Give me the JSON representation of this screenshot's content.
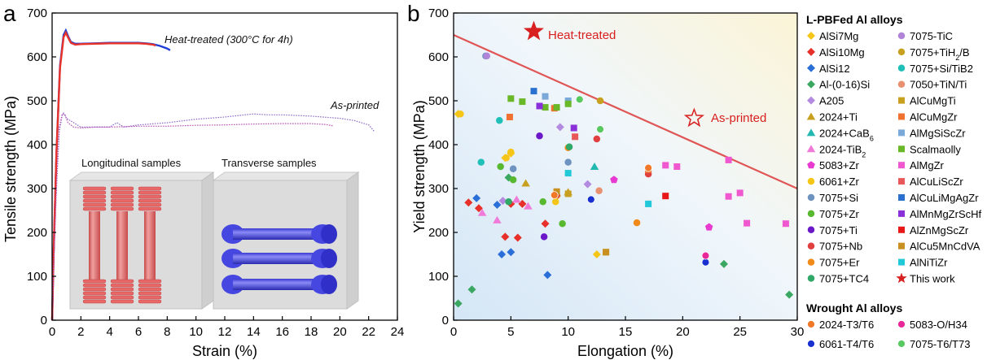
{
  "panels": {
    "a": "a",
    "b": "b"
  },
  "chart_data": [
    {
      "type": "line",
      "xlabel": "Strain (%)",
      "ylabel": "Tensile strength (MPa)",
      "xlim": [
        0,
        24
      ],
      "ylim": [
        0,
        700
      ],
      "xticks": [
        0,
        2,
        4,
        6,
        8,
        10,
        12,
        14,
        16,
        18,
        20,
        22,
        24
      ],
      "yticks": [
        0,
        100,
        200,
        300,
        400,
        500,
        600,
        700
      ],
      "grid": false,
      "annotations": {
        "heat_treated": "Heat-treated (300°C for 4h)",
        "as_printed": "As-printed",
        "longitudinal": "Longitudinal samples",
        "transverse": "Transverse samples"
      },
      "series": [
        {
          "color": "#1f3fd6",
          "x": [
            0,
            0.1,
            0.3,
            0.55,
            0.8,
            0.95,
            1.1,
            1.3,
            1.6,
            2,
            3,
            4,
            5,
            6,
            6.5,
            7,
            7.5,
            8,
            8.2
          ],
          "y": [
            0,
            150,
            380,
            580,
            650,
            660,
            648,
            634,
            630,
            630,
            631,
            632,
            632,
            632,
            631,
            629,
            625,
            619,
            615
          ]
        },
        {
          "color": "#e8322a",
          "x": [
            0,
            0.1,
            0.3,
            0.55,
            0.8,
            0.95,
            1.1,
            1.3,
            1.6,
            2,
            3,
            4,
            5,
            6,
            6.5,
            7,
            7.2
          ],
          "y": [
            0,
            150,
            380,
            575,
            645,
            655,
            645,
            632,
            628,
            629,
            630,
            631,
            631,
            631,
            630,
            628,
            626
          ]
        },
        {
          "color": "#8a63c8",
          "x": [
            0,
            0.1,
            0.3,
            0.5,
            0.7,
            0.8,
            1,
            2,
            4,
            4.5,
            5,
            6,
            8,
            10,
            12,
            14,
            15,
            16,
            18,
            20,
            21,
            22,
            22.4
          ],
          "y": [
            0,
            120,
            300,
            430,
            468,
            472,
            460,
            440,
            440,
            450,
            440,
            445,
            450,
            458,
            463,
            470,
            468,
            468,
            465,
            460,
            455,
            445,
            430
          ]
        },
        {
          "color": "#b64cb0",
          "x": [
            0,
            0.1,
            0.3,
            0.5,
            0.7,
            0.9,
            1.1,
            1.5,
            2,
            3,
            4,
            5,
            6,
            8,
            10,
            12,
            14,
            16,
            18,
            19,
            19.5
          ],
          "y": [
            0,
            120,
            300,
            440,
            470,
            468,
            450,
            440,
            438,
            440,
            440,
            441,
            442,
            442,
            444,
            445,
            447,
            448,
            448,
            446,
            443
          ]
        }
      ]
    },
    {
      "type": "scatter",
      "xlabel": "Elongation (%)",
      "ylabel": "Yield strength (MPa)",
      "xlim": [
        0,
        30
      ],
      "ylim": [
        0,
        700
      ],
      "xticks": [
        0,
        5,
        10,
        15,
        20,
        25,
        30
      ],
      "yticks": [
        0,
        100,
        200,
        300,
        400,
        500,
        600,
        700
      ],
      "grid": false,
      "legend_position": "right",
      "legend_heading_lpbf": "L-PBFed Al alloys",
      "legend_heading_wrought": "Wrought Al alloys",
      "boundary_line": {
        "x": [
          0,
          30
        ],
        "y": [
          650,
          300
        ],
        "color": "#e05555"
      },
      "this_work": [
        {
          "label": "Heat-treated",
          "x": 7,
          "y": 658,
          "filled": true
        },
        {
          "label": "As-printed",
          "x": 21,
          "y": 460,
          "filled": false
        }
      ],
      "series": [
        {
          "name": "AlSi7Mg",
          "name_main": "AlSi7Mg",
          "marker": "diamond",
          "color": "#f5c518",
          "points": [
            [
              0.4,
              470
            ],
            [
              4.5,
              370
            ],
            [
              5,
              380
            ],
            [
              12.5,
              150
            ],
            [
              9,
              282
            ]
          ]
        },
        {
          "name": "AlSi10Mg",
          "name_main": "AlSi10Mg",
          "marker": "diamond",
          "color": "#e8302a",
          "points": [
            [
              1.3,
              268
            ],
            [
              2.2,
              255
            ],
            [
              4.5,
              190
            ],
            [
              5.6,
              188
            ],
            [
              6,
              265
            ],
            [
              8,
              220
            ],
            [
              5,
              265
            ]
          ]
        },
        {
          "name": "AlSi12",
          "name_main": "AlSi12",
          "marker": "diamond",
          "color": "#2a6fd8",
          "points": [
            [
              2,
              278
            ],
            [
              3.8,
              263
            ],
            [
              4.2,
              150
            ],
            [
              5,
              155
            ],
            [
              8.2,
              103
            ]
          ]
        },
        {
          "name": "Al-(0-16)Si",
          "name_main": "Al-(0-16)Si",
          "marker": "diamond",
          "color": "#3aa860",
          "points": [
            [
              0.4,
              38
            ],
            [
              1.6,
              70
            ],
            [
              4.8,
              325
            ],
            [
              23.6,
              128
            ],
            [
              29.3,
              58
            ]
          ]
        },
        {
          "name": "A205",
          "name_main": "A205",
          "marker": "diamond",
          "color": "#b48ae0",
          "points": [
            [
              9.3,
              440
            ],
            [
              11.7,
              310
            ],
            [
              4.3,
              272
            ]
          ]
        },
        {
          "name": "2024+Ti",
          "name_main": "2024+Ti",
          "marker": "triangle",
          "color": "#c8a020",
          "points": [
            [
              6.3,
              312
            ],
            [
              10,
              292
            ],
            [
              9,
              290
            ]
          ]
        },
        {
          "name": "2024+CaB6",
          "name_main": "2024+CaB",
          "name_sub": "6",
          "marker": "triangle",
          "color": "#20b8b0",
          "points": [
            [
              12.3,
              350
            ]
          ]
        },
        {
          "name": "2024-TiB2",
          "name_main": "2024-TiB",
          "name_sub": "2",
          "marker": "triangle",
          "color": "#f07ad8",
          "points": [
            [
              2.5,
              245
            ],
            [
              3.8,
              228
            ],
            [
              5.5,
              275
            ],
            [
              6.5,
              260
            ]
          ]
        },
        {
          "name": "5083+Zr",
          "name_main": "5083+Zr",
          "marker": "pentagon",
          "color": "#e83ad0",
          "points": [
            [
              14,
              320
            ],
            [
              22.3,
              212
            ]
          ]
        },
        {
          "name": "6061+Zr",
          "name_main": "6061+Zr",
          "marker": "circle",
          "color": "#f5c518",
          "points": [
            [
              0.6,
              470
            ],
            [
              4.6,
              370
            ],
            [
              5,
              383
            ],
            [
              8.9,
              270
            ]
          ]
        },
        {
          "name": "7075+Si",
          "name_main": "7075+Si",
          "marker": "circle",
          "color": "#6f93c0",
          "points": [
            [
              5.2,
              345
            ],
            [
              10,
              360
            ],
            [
              2.8,
              602
            ]
          ]
        },
        {
          "name": "7075+Zr",
          "name_main": "7075+Zr",
          "marker": "circle",
          "color": "#58b830",
          "points": [
            [
              4.1,
              350
            ],
            [
              5.2,
              320
            ],
            [
              7.8,
              270
            ],
            [
              9.5,
              220
            ]
          ]
        },
        {
          "name": "7075+Ti",
          "name_main": "7075+Ti",
          "marker": "circle",
          "color": "#6a18c8",
          "points": [
            [
              7.5,
              420
            ],
            [
              7.9,
              190
            ]
          ]
        },
        {
          "name": "7075+Nb",
          "name_main": "7075+Nb",
          "marker": "circle",
          "color": "#e04040",
          "points": [
            [
              12.5,
              413
            ],
            [
              9,
              285
            ],
            [
              17,
              333
            ]
          ]
        },
        {
          "name": "7075+Er",
          "name_main": "7075+Er",
          "marker": "circle",
          "color": "#f08a18",
          "points": [
            [
              10,
              393
            ],
            [
              17,
              345
            ],
            [
              16,
              222
            ]
          ]
        },
        {
          "name": "7075+TC4",
          "name_main": "7075+TC4",
          "marker": "circle",
          "color": "#30a868",
          "points": [
            [
              10.1,
              395
            ],
            [
              4.8,
              270
            ]
          ]
        },
        {
          "name": "7075-TiC",
          "name_main": "7075-TiC",
          "marker": "circle",
          "color": "#b084d8",
          "points": [
            [
              2.9,
              602
            ]
          ]
        },
        {
          "name": "7075+TiH2/B",
          "name_main": "7075+TiH",
          "name_sub": "2",
          "name_tail": "/B",
          "marker": "circle",
          "color": "#c8a020",
          "points": [
            [
              12.8,
              500
            ]
          ]
        },
        {
          "name": "7075+Si/TiB2",
          "name_main": "7075+Si/TiB2",
          "marker": "circle",
          "color": "#20c0b8",
          "points": [
            [
              2.4,
              360
            ],
            [
              4,
              455
            ]
          ]
        },
        {
          "name": "7050+TiN/Ti",
          "name_main": "7050+TiN/Ti",
          "marker": "circle",
          "color": "#e89070",
          "points": [
            [
              12.7,
              295
            ]
          ]
        },
        {
          "name": "AlCuMgTi",
          "name_main": "AlCuMgTi",
          "marker": "square",
          "color": "#c8a020",
          "points": [
            [
              13.3,
              155
            ],
            [
              10,
              288
            ]
          ]
        },
        {
          "name": "AlCuMgZr",
          "name_main": "AlCuMgZr",
          "marker": "square",
          "color": "#f07030",
          "points": [
            [
              4.9,
              463
            ],
            [
              8.8,
              483
            ],
            [
              17,
              343
            ]
          ]
        },
        {
          "name": "AlMgSiScZr",
          "name_main": "AlMgSiScZr",
          "marker": "square",
          "color": "#7aa8d8",
          "points": [
            [
              8,
              510
            ],
            [
              10,
              500
            ]
          ]
        },
        {
          "name": "Scalmaolly",
          "name_main": "Scalmaolly",
          "marker": "square",
          "color": "#68b828",
          "points": [
            [
              5,
              505
            ],
            [
              6,
              498
            ],
            [
              8,
              485
            ],
            [
              9,
              485
            ],
            [
              10,
              493
            ]
          ]
        },
        {
          "name": "AlMgZr",
          "name_main": "AlMgZr",
          "marker": "square",
          "color": "#f058d0",
          "points": [
            [
              18.5,
              353
            ],
            [
              19.5,
              350
            ],
            [
              24,
              365
            ],
            [
              24,
              282
            ],
            [
              25,
              290
            ],
            [
              25.6,
              221
            ],
            [
              29,
              220
            ]
          ]
        },
        {
          "name": "AlCuLiScZr",
          "name_main": "AlCuLiScZr",
          "marker": "square",
          "color": "#e85858",
          "points": [
            [
              10.6,
              418
            ]
          ]
        },
        {
          "name": "AlCuLiMgAgZr",
          "name_main": "AlCuLiMgAgZr",
          "marker": "square",
          "color": "#2a70d0",
          "points": [
            [
              7,
              522
            ]
          ]
        },
        {
          "name": "AlMnMgZrScHf",
          "name_main": "AlMnMgZrScHf",
          "marker": "square",
          "color": "#8a30d8",
          "points": [
            [
              7.5,
              488
            ],
            [
              10.5,
              438
            ]
          ]
        },
        {
          "name": "AlZnMgScZr",
          "name_main": "AlZnMgScZr",
          "marker": "square",
          "color": "#e81818",
          "points": [
            [
              18.5,
              283
            ]
          ]
        },
        {
          "name": "AlCu5MnCdVA",
          "name_main": "AlCu5MnCdVA",
          "marker": "square",
          "color": "#c89020",
          "points": [
            [
              13.3,
              155
            ],
            [
              9,
              293
            ]
          ]
        },
        {
          "name": "AlNiTiZr",
          "name_main": "AlNiTiZr",
          "marker": "square",
          "color": "#20c8d8",
          "points": [
            [
              10,
              335
            ],
            [
              17,
              265
            ]
          ]
        },
        {
          "name": "This work",
          "name_main": "This work",
          "marker": "star",
          "color": "#d82020",
          "points": []
        },
        {
          "name": "2024-T3/T6",
          "name_main": "2024-T3/T6",
          "marker": "wcircle",
          "color": "#f07828",
          "wrought": true,
          "points": [
            [
              8.8,
              285
            ],
            [
              17,
              347
            ]
          ]
        },
        {
          "name": "6061-T4/T6",
          "name_main": "6061-T4/T6",
          "marker": "wcircle",
          "color": "#1830d0",
          "wrought": true,
          "points": [
            [
              12,
              275
            ],
            [
              22,
              132
            ]
          ]
        },
        {
          "name": "5083-O/H34",
          "name_main": "5083-O/H34",
          "marker": "wcircle",
          "color": "#e82898",
          "wrought": true,
          "points": [
            [
              22,
              147
            ]
          ]
        },
        {
          "name": "7075-T6/T73",
          "name_main": "7075-T6/T73",
          "marker": "wcircle",
          "color": "#58c860",
          "wrought": true,
          "points": [
            [
              11,
              503
            ],
            [
              12.8,
              435
            ]
          ]
        }
      ]
    }
  ]
}
